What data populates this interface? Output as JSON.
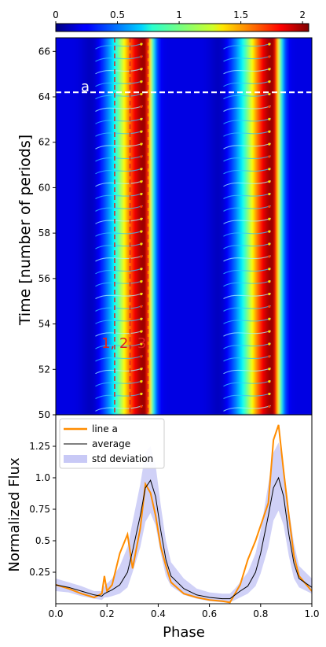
{
  "colorbar": {
    "ticks": [
      "0",
      "0.5",
      "1",
      "1.5",
      "2"
    ],
    "tick_values": [
      0,
      0.5,
      1,
      1.5,
      2
    ],
    "range": [
      0,
      2.05
    ],
    "colormap": "jet"
  },
  "chart_data": [
    {
      "type": "heatmap",
      "ylabel": "Time [number of periods]",
      "xlim": [
        0,
        1
      ],
      "ylim": [
        50,
        66.6
      ],
      "yticks": [
        "50",
        "52",
        "54",
        "56",
        "58",
        "60",
        "62",
        "64",
        "66"
      ],
      "ytick_values": [
        50,
        52,
        54,
        56,
        58,
        60,
        62,
        64,
        66
      ],
      "horizontal_line": {
        "y": 64.2,
        "label": "a",
        "color": "#ffffff",
        "style": "dashed"
      },
      "vertical_lines": [
        {
          "x": 0.23,
          "color": "#e02020",
          "style": "dashed"
        },
        {
          "x": 0.29,
          "color": "#e02020",
          "style": "dashed"
        },
        {
          "x": 0.36,
          "color": "#e02020",
          "style": "dashed"
        }
      ],
      "vertical_line_labels": "1, 2, 3",
      "vertical_labels_y": 53.0,
      "peaks": [
        {
          "center": 0.345,
          "width": 0.035,
          "amplitude": 1.8
        },
        {
          "center": 0.845,
          "width": 0.035,
          "amplitude": 1.8
        }
      ]
    },
    {
      "type": "line",
      "xlabel": "Phase",
      "ylabel": "Normalized Flux",
      "xlim": [
        0,
        1
      ],
      "ylim": [
        0,
        1.5
      ],
      "xticks": [
        "0.0",
        "0.2",
        "0.4",
        "0.6",
        "0.8",
        "1.0"
      ],
      "xtick_values": [
        0,
        0.2,
        0.4,
        0.6,
        0.8,
        1.0
      ],
      "yticks": [
        "0.25",
        "0.5",
        "0.75",
        "1.0",
        "1.25"
      ],
      "ytick_values": [
        0.25,
        0.5,
        0.75,
        1.0,
        1.25
      ],
      "legend": {
        "placement": "top-left",
        "entries": [
          "line a",
          "average",
          "std deviation"
        ]
      },
      "x": [
        0.0,
        0.05,
        0.1,
        0.15,
        0.18,
        0.19,
        0.2,
        0.22,
        0.25,
        0.28,
        0.3,
        0.33,
        0.35,
        0.37,
        0.39,
        0.41,
        0.43,
        0.45,
        0.5,
        0.55,
        0.6,
        0.65,
        0.68,
        0.7,
        0.72,
        0.75,
        0.78,
        0.8,
        0.83,
        0.85,
        0.87,
        0.89,
        0.91,
        0.93,
        0.95,
        1.0
      ],
      "series": [
        {
          "name": "average",
          "color": "#000000",
          "values": [
            0.15,
            0.13,
            0.1,
            0.07,
            0.06,
            0.08,
            0.09,
            0.11,
            0.15,
            0.25,
            0.42,
            0.7,
            0.92,
            0.98,
            0.85,
            0.58,
            0.35,
            0.22,
            0.12,
            0.07,
            0.05,
            0.04,
            0.04,
            0.07,
            0.1,
            0.14,
            0.25,
            0.4,
            0.7,
            0.92,
            1.0,
            0.85,
            0.55,
            0.32,
            0.2,
            0.13
          ]
        },
        {
          "name": "line a",
          "color": "#ff8c00",
          "values": [
            0.15,
            0.12,
            0.08,
            0.05,
            0.08,
            0.22,
            0.1,
            0.15,
            0.4,
            0.55,
            0.28,
            0.6,
            0.95,
            0.88,
            0.7,
            0.45,
            0.3,
            0.17,
            0.08,
            0.05,
            0.03,
            0.02,
            0.01,
            0.08,
            0.15,
            0.35,
            0.5,
            0.62,
            0.8,
            1.3,
            1.42,
            1.05,
            0.7,
            0.38,
            0.22,
            0.1
          ]
        },
        {
          "name": "std deviation",
          "color": "#9a9cf0",
          "lower": [
            0.1,
            0.09,
            0.06,
            0.04,
            0.03,
            0.05,
            0.05,
            0.06,
            0.08,
            0.13,
            0.25,
            0.45,
            0.65,
            0.72,
            0.62,
            0.4,
            0.22,
            0.14,
            0.07,
            0.04,
            0.02,
            0.01,
            0.01,
            0.03,
            0.05,
            0.08,
            0.14,
            0.24,
            0.45,
            0.66,
            0.74,
            0.62,
            0.38,
            0.2,
            0.13,
            0.08
          ],
          "upper": [
            0.2,
            0.17,
            0.14,
            0.1,
            0.1,
            0.14,
            0.16,
            0.2,
            0.3,
            0.45,
            0.65,
            0.95,
            1.2,
            1.25,
            1.1,
            0.78,
            0.5,
            0.33,
            0.2,
            0.12,
            0.09,
            0.08,
            0.08,
            0.12,
            0.17,
            0.25,
            0.4,
            0.58,
            0.95,
            1.2,
            1.28,
            1.1,
            0.75,
            0.48,
            0.3,
            0.2
          ]
        }
      ]
    }
  ]
}
